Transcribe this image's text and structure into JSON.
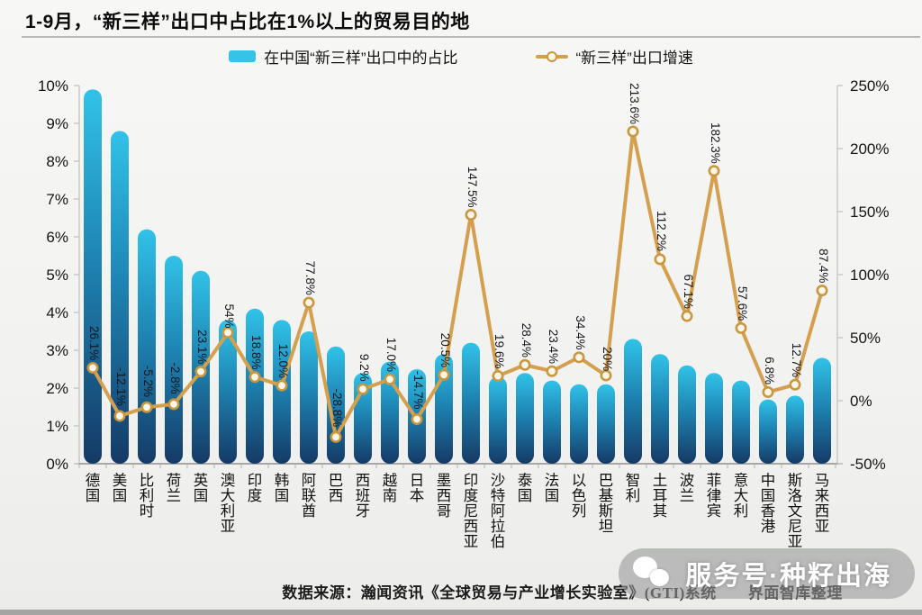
{
  "title": "1-9月，“新三样”出口中占比在1%以上的贸易目的地",
  "legend": [
    {
      "label": "在中国“新三样”出口中的占比",
      "type": "bar",
      "color": "#36c3e6"
    },
    {
      "label": "“新三样”出口增速",
      "type": "line",
      "color": "#d4a04f"
    }
  ],
  "footer": "数据来源：瀚闻资讯《全球贸易与产业增长实验室》(GTI)系统　　界面智库整理",
  "watermark": "服务号·种籽出海",
  "icons": {
    "watermark_icon": "wechat-icon"
  },
  "colors": {
    "bar_top": "#31c2e8",
    "bar_mid": "#1e85b4",
    "bar_bottom": "#153a66",
    "line": "#d4a04f",
    "marker_fill": "#fdf6e8",
    "marker_stroke": "#c9973f",
    "axis_line": "#c9c9c7",
    "axis_bottom": "#8f8f8d",
    "tick_text": "#141414",
    "label_text": "#16181d"
  },
  "chart_data": {
    "type": "bar",
    "subtype": "bar+line combo, dual axis",
    "title": "1-9月，“新三样”出口中占比在1%以上的贸易目的地",
    "xlabel": "",
    "ylabel_left": "在中国“新三样”出口中的占比 (%)",
    "ylabel_right": "“新三样”出口增速 (%)",
    "grid": false,
    "legend_position": "top",
    "categories": [
      "德国",
      "美国",
      "比利时",
      "荷兰",
      "英国",
      "澳大利亚",
      "印度",
      "韩国",
      "阿联酋",
      "巴西",
      "西班牙",
      "越南",
      "日本",
      "墨西哥",
      "印度尼西亚",
      "沙特阿拉伯",
      "泰国",
      "法国",
      "以色列",
      "巴基斯坦",
      "智利",
      "土耳其",
      "波兰",
      "菲律宾",
      "意大利",
      "中国香港",
      "斯洛文尼亚",
      "马来西亚"
    ],
    "series": [
      {
        "name": "在中国“新三样”出口中的占比",
        "type": "bar",
        "axis": "left",
        "unit": "%",
        "values": [
          9.9,
          8.8,
          6.2,
          5.5,
          5.1,
          3.8,
          4.1,
          3.8,
          3.5,
          3.1,
          2.4,
          2.7,
          2.5,
          2.9,
          3.2,
          2.3,
          2.4,
          2.2,
          2.1,
          2.1,
          3.3,
          2.9,
          2.6,
          2.4,
          2.2,
          1.7,
          1.8,
          2.8
        ]
      },
      {
        "name": "“新三样”出口增速",
        "type": "line",
        "axis": "right",
        "unit": "%",
        "values": [
          26.1,
          -12.1,
          -5.2,
          -2.8,
          23.1,
          54,
          18.8,
          12.0,
          77.8,
          -28.8,
          9.2,
          17.0,
          -14.7,
          20.5,
          147.5,
          19.6,
          28.4,
          23.4,
          34.4,
          20,
          213.6,
          112.2,
          67.1,
          182.3,
          57.6,
          6.8,
          12.7,
          87.4
        ],
        "labels": [
          "26.1%",
          "-12.1%",
          "-5.2%",
          "-2.8%",
          "23.1%",
          "54%",
          "18.8%",
          "12.0%",
          "77.8%",
          "-28.8%",
          "9.2%",
          "17.0%",
          "-14.7%",
          "20.5%",
          "147.5%",
          "19.6%",
          "28.4%",
          "23.4%",
          "34.4%",
          "20%",
          "213.6%",
          "112.2%",
          "67.1%",
          "182.3%",
          "57.6%",
          "6.8%",
          "12.7%",
          "87.4%"
        ]
      }
    ],
    "left_axis": {
      "min": 0,
      "max": 10,
      "tick_step": 1,
      "ticks": [
        "0%",
        "1%",
        "2%",
        "3%",
        "4%",
        "5%",
        "6%",
        "7%",
        "8%",
        "9%",
        "10%"
      ]
    },
    "right_axis": {
      "min": -50,
      "max": 250,
      "tick_step": 50,
      "ticks": [
        "-50%",
        "0%",
        "50%",
        "100%",
        "150%",
        "200%",
        "250%"
      ]
    }
  }
}
